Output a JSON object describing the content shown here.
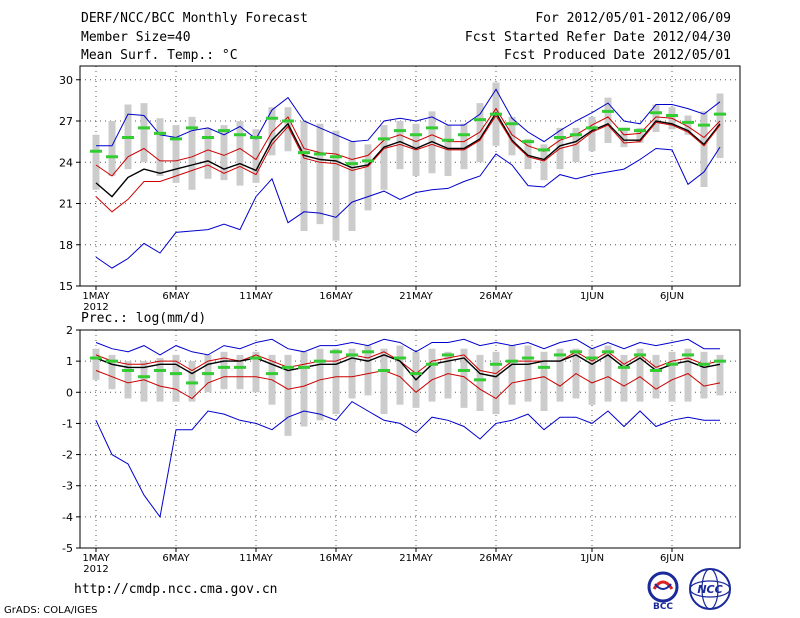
{
  "header": {
    "title": "DERF/NCC/BCC Monthly Forecast",
    "member_size": "Member Size=40",
    "variable1": "Mean Surf. Temp.: °C",
    "period": "For 2012/05/01-2012/06/09",
    "refer_date": "Fcst Started Refer Date 2012/04/30",
    "produced_date": "Fcst Produced Date 2012/05/01"
  },
  "footer": {
    "url": "http://cmdp.ncc.cma.gov.cn",
    "grads": "GrADS: COLA/IGES",
    "logo1_text": "BCC",
    "logo2_text": "NCC"
  },
  "chart_data": [
    {
      "type": "line",
      "title": "Mean Surf. Temp.: °C",
      "xlabel": "",
      "ylabel": "",
      "x_tick_labels": [
        "1MAY",
        "6MAY",
        "11MAY",
        "16MAY",
        "21MAY",
        "26MAY",
        "1JUN",
        "6JUN"
      ],
      "x_tick_days": [
        1,
        6,
        11,
        16,
        21,
        26,
        32,
        37
      ],
      "year_label": "2012",
      "ylim": [
        15,
        31
      ],
      "y_ticks": [
        15,
        18,
        21,
        24,
        27,
        30
      ],
      "y_tick_labels": [
        "15",
        "18",
        "21",
        "24",
        "27",
        "30"
      ],
      "days": [
        1,
        2,
        3,
        4,
        5,
        6,
        7,
        8,
        9,
        10,
        11,
        12,
        13,
        14,
        15,
        16,
        17,
        18,
        19,
        20,
        21,
        22,
        23,
        24,
        25,
        26,
        27,
        28,
        29,
        30,
        31,
        32,
        33,
        34,
        35,
        36,
        37,
        38,
        39,
        40
      ],
      "series": [
        {
          "name": "max",
          "color": "#0000cc",
          "values": [
            25.2,
            25.2,
            27.5,
            27.4,
            26.0,
            25.8,
            26.3,
            26.5,
            26.0,
            26.6,
            25.7,
            27.8,
            28.7,
            27.0,
            26.5,
            26.0,
            25.5,
            25.6,
            27.0,
            27.2,
            27.0,
            27.3,
            26.7,
            26.7,
            27.5,
            29.3,
            27.2,
            26.2,
            25.5,
            26.3,
            27.0,
            27.6,
            28.3,
            27.0,
            26.8,
            28.2,
            28.2,
            27.9,
            27.5,
            28.4
          ]
        },
        {
          "name": "member_max",
          "color": "#cc0000",
          "values": [
            23.8,
            23.0,
            24.4,
            25.0,
            24.1,
            24.1,
            24.4,
            24.9,
            24.5,
            25.0,
            24.2,
            26.2,
            27.3,
            25.0,
            24.7,
            24.6,
            24.2,
            24.5,
            25.6,
            26.0,
            25.5,
            26.0,
            25.5,
            25.5,
            26.2,
            27.9,
            26.0,
            25.2,
            24.8,
            25.6,
            26.0,
            26.7,
            27.3,
            26.0,
            26.1,
            27.3,
            27.2,
            26.6,
            25.8,
            27.0
          ]
        },
        {
          "name": "mean",
          "color": "#000000",
          "values": [
            22.5,
            21.5,
            22.9,
            23.5,
            23.2,
            23.5,
            23.8,
            24.1,
            23.5,
            23.9,
            23.4,
            25.6,
            26.8,
            24.5,
            24.2,
            24.1,
            23.6,
            23.8,
            25.1,
            25.5,
            25.0,
            25.5,
            25.0,
            25.0,
            25.7,
            27.6,
            25.6,
            24.5,
            24.2,
            25.2,
            25.5,
            26.3,
            26.8,
            25.6,
            25.6,
            27.0,
            26.8,
            26.3,
            25.3,
            26.8
          ]
        },
        {
          "name": "member_min",
          "color": "#cc0000",
          "values": [
            21.5,
            20.4,
            21.3,
            22.6,
            22.6,
            23.0,
            23.4,
            23.8,
            23.2,
            23.7,
            23.1,
            25.3,
            26.6,
            24.3,
            24.0,
            23.9,
            23.4,
            23.7,
            25.0,
            25.3,
            24.9,
            25.3,
            24.9,
            24.9,
            25.6,
            27.4,
            25.5,
            24.4,
            24.1,
            25.0,
            25.3,
            26.2,
            26.7,
            25.4,
            25.5,
            26.9,
            26.7,
            26.2,
            25.2,
            26.7
          ]
        },
        {
          "name": "min",
          "color": "#0000cc",
          "values": [
            17.1,
            16.3,
            17.0,
            18.1,
            17.4,
            18.9,
            19.0,
            19.1,
            19.5,
            19.1,
            21.5,
            22.8,
            19.6,
            20.4,
            20.3,
            20.0,
            21.1,
            21.5,
            21.9,
            21.3,
            21.8,
            22.0,
            22.1,
            22.6,
            23.0,
            24.6,
            23.8,
            22.3,
            22.2,
            23.1,
            22.8,
            23.1,
            23.3,
            23.5,
            24.2,
            25.0,
            24.9,
            22.4,
            23.3,
            25.1
          ]
        }
      ],
      "observed": [
        24.8,
        24.4,
        25.8,
        26.5,
        26.1,
        25.7,
        26.5,
        25.8,
        26.3,
        26.0,
        25.8,
        27.2,
        27.0,
        24.7,
        24.6,
        24.4,
        23.9,
        24.1,
        25.7,
        26.3,
        26.0,
        26.5,
        25.6,
        26.0,
        27.1,
        27.5,
        26.8,
        25.5,
        24.9,
        25.8,
        26.0,
        26.5,
        27.7,
        26.4,
        26.3,
        27.6,
        27.4,
        26.9,
        26.7,
        27.5
      ],
      "observed_color": "#33cc33",
      "ranges": [
        [
          22,
          26
        ],
        [
          23,
          27
        ],
        [
          23.5,
          28.2
        ],
        [
          24,
          28.3
        ],
        [
          23,
          27.2
        ],
        [
          22.5,
          26.7
        ],
        [
          22,
          27.3
        ],
        [
          22.8,
          26.5
        ],
        [
          22.7,
          26.7
        ],
        [
          22.3,
          27
        ],
        [
          22.5,
          26.4
        ],
        [
          24.5,
          28
        ],
        [
          24.8,
          28
        ],
        [
          19,
          27
        ],
        [
          19.5,
          26.8
        ],
        [
          18.3,
          26.3
        ],
        [
          19,
          25.5
        ],
        [
          20.5,
          25.3
        ],
        [
          22,
          26.7
        ],
        [
          23.5,
          27
        ],
        [
          23,
          26.8
        ],
        [
          23.2,
          27.7
        ],
        [
          23,
          26.7
        ],
        [
          23.5,
          26.8
        ],
        [
          24,
          28.3
        ],
        [
          25.2,
          29.8
        ],
        [
          24.5,
          27.3
        ],
        [
          23.5,
          25.7
        ],
        [
          22.7,
          25.3
        ],
        [
          23.5,
          26.5
        ],
        [
          24,
          26.5
        ],
        [
          24.8,
          27.3
        ],
        [
          25.4,
          28.7
        ],
        [
          25.1,
          26.5
        ],
        [
          25.4,
          26.5
        ],
        [
          26.2,
          28.2
        ],
        [
          26.4,
          28
        ],
        [
          26,
          27.4
        ],
        [
          22.2,
          27.7
        ],
        [
          24.3,
          29
        ]
      ],
      "range_color": "#cccccc"
    },
    {
      "type": "line",
      "title": "Prec.: log(mm/d)",
      "xlabel": "",
      "ylabel": "",
      "x_tick_labels": [
        "1MAY",
        "6MAY",
        "11MAY",
        "16MAY",
        "21MAY",
        "26MAY",
        "1JUN",
        "6JUN"
      ],
      "x_tick_days": [
        1,
        6,
        11,
        16,
        21,
        26,
        32,
        37
      ],
      "year_label": "2012",
      "ylim": [
        -5,
        2
      ],
      "y_ticks": [
        -5,
        -4,
        -3,
        -2,
        -1,
        0,
        1,
        2
      ],
      "y_tick_labels": [
        "-5",
        "-4",
        "-3",
        "-2",
        "-1",
        "0",
        "1",
        "2"
      ],
      "days": [
        1,
        2,
        3,
        4,
        5,
        6,
        7,
        8,
        9,
        10,
        11,
        12,
        13,
        14,
        15,
        16,
        17,
        18,
        19,
        20,
        21,
        22,
        23,
        24,
        25,
        26,
        27,
        28,
        29,
        30,
        31,
        32,
        33,
        34,
        35,
        36,
        37,
        38,
        39,
        40
      ],
      "series": [
        {
          "name": "max",
          "color": "#0000cc",
          "values": [
            1.6,
            1.4,
            1.3,
            1.5,
            1.2,
            1.5,
            1.3,
            1.2,
            1.5,
            1.4,
            1.6,
            1.7,
            1.4,
            1.3,
            1.5,
            1.5,
            1.6,
            1.5,
            1.7,
            1.6,
            1.3,
            1.6,
            1.6,
            1.7,
            1.5,
            1.6,
            1.5,
            1.6,
            1.4,
            1.6,
            1.7,
            1.4,
            1.6,
            1.4,
            1.6,
            1.5,
            1.6,
            1.7,
            1.4,
            1.4
          ]
        },
        {
          "name": "member_max",
          "color": "#cc0000",
          "values": [
            1.2,
            1.0,
            0.9,
            0.9,
            1.0,
            1.0,
            0.7,
            1.0,
            1.1,
            1.0,
            1.2,
            1.0,
            0.8,
            0.9,
            1.0,
            1.0,
            1.2,
            1.1,
            1.3,
            1.0,
            0.6,
            1.0,
            1.1,
            1.2,
            0.7,
            0.6,
            1.0,
            1.0,
            1.0,
            1.0,
            1.3,
            1.0,
            1.3,
            0.9,
            1.2,
            0.8,
            1.0,
            1.1,
            0.9,
            1.0
          ]
        },
        {
          "name": "mean",
          "color": "#000000",
          "values": [
            1.1,
            0.9,
            0.8,
            0.8,
            0.9,
            0.9,
            0.6,
            0.9,
            1.0,
            1.0,
            1.1,
            0.9,
            0.7,
            0.8,
            0.9,
            0.9,
            1.1,
            1.0,
            1.2,
            1.0,
            0.4,
            0.9,
            1.0,
            1.1,
            0.6,
            0.5,
            0.9,
            0.9,
            1.0,
            1.0,
            1.2,
            0.9,
            1.2,
            0.8,
            1.1,
            0.7,
            0.9,
            1.0,
            0.8,
            0.9
          ]
        },
        {
          "name": "member_min",
          "color": "#cc0000",
          "values": [
            0.7,
            0.5,
            0.3,
            0.4,
            0.2,
            0.1,
            -0.2,
            0.3,
            0.5,
            0.5,
            0.5,
            0.4,
            0.1,
            0.2,
            0.4,
            0.5,
            0.5,
            0.6,
            0.7,
            0.5,
            0.0,
            0.4,
            0.6,
            0.5,
            0.1,
            -0.2,
            0.3,
            0.4,
            0.5,
            0.2,
            0.6,
            0.3,
            0.5,
            0.2,
            0.5,
            0.1,
            0.4,
            0.6,
            0.2,
            0.3
          ]
        },
        {
          "name": "min",
          "color": "#0000cc",
          "values": [
            -0.9,
            -2.0,
            -2.3,
            -3.3,
            -4.0,
            -1.2,
            -1.2,
            -0.6,
            -0.7,
            -0.9,
            -1.0,
            -1.2,
            -0.8,
            -0.6,
            -0.7,
            -0.9,
            -0.3,
            -0.6,
            -0.9,
            -1.0,
            -1.3,
            -0.8,
            -0.9,
            -1.1,
            -1.5,
            -1.0,
            -0.9,
            -0.7,
            -1.2,
            -0.8,
            -0.8,
            -1.0,
            -0.6,
            -1.1,
            -0.6,
            -1.1,
            -0.9,
            -0.8,
            -0.9,
            -0.9
          ]
        }
      ],
      "observed": [
        1.1,
        1.0,
        0.7,
        0.5,
        0.7,
        0.6,
        0.3,
        0.6,
        0.8,
        0.8,
        1.1,
        0.6,
        0.8,
        0.8,
        1.0,
        1.3,
        1.2,
        1.3,
        0.7,
        1.1,
        0.6,
        0.9,
        1.2,
        0.7,
        0.4,
        0.9,
        1.0,
        1.1,
        0.8,
        1.2,
        1.3,
        1.1,
        1.3,
        0.8,
        1.2,
        0.7,
        0.9,
        1.2,
        0.9,
        1.0
      ],
      "observed_color": "#33cc33",
      "ranges": [
        [
          0.4,
          1.4
        ],
        [
          0.1,
          1.2
        ],
        [
          -0.2,
          1.0
        ],
        [
          -0.3,
          1.0
        ],
        [
          -0.3,
          1.1
        ],
        [
          -0.3,
          1.2
        ],
        [
          -0.3,
          1.0
        ],
        [
          0.0,
          1.2
        ],
        [
          0.1,
          1.3
        ],
        [
          0.1,
          1.2
        ],
        [
          0.0,
          1.3
        ],
        [
          -0.4,
          1.2
        ],
        [
          -1.4,
          1.2
        ],
        [
          -1.1,
          1.3
        ],
        [
          -0.9,
          1.4
        ],
        [
          -0.7,
          1.4
        ],
        [
          -0.2,
          1.4
        ],
        [
          -0.1,
          1.5
        ],
        [
          -0.7,
          1.4
        ],
        [
          -0.4,
          1.5
        ],
        [
          -0.5,
          1.3
        ],
        [
          -0.3,
          1.4
        ],
        [
          -0.2,
          1.3
        ],
        [
          -0.5,
          1.4
        ],
        [
          -0.6,
          1.2
        ],
        [
          -0.7,
          1.3
        ],
        [
          -0.4,
          1.5
        ],
        [
          -0.3,
          1.5
        ],
        [
          -0.6,
          1.3
        ],
        [
          -0.3,
          1.4
        ],
        [
          -0.2,
          1.4
        ],
        [
          -0.4,
          1.4
        ],
        [
          -0.3,
          1.5
        ],
        [
          -0.3,
          1.2
        ],
        [
          -0.3,
          1.4
        ],
        [
          -0.2,
          1.2
        ],
        [
          -0.3,
          1.3
        ],
        [
          -0.3,
          1.4
        ],
        [
          -0.2,
          1.3
        ],
        [
          -0.1,
          1.2
        ]
      ],
      "range_color": "#cccccc"
    }
  ]
}
